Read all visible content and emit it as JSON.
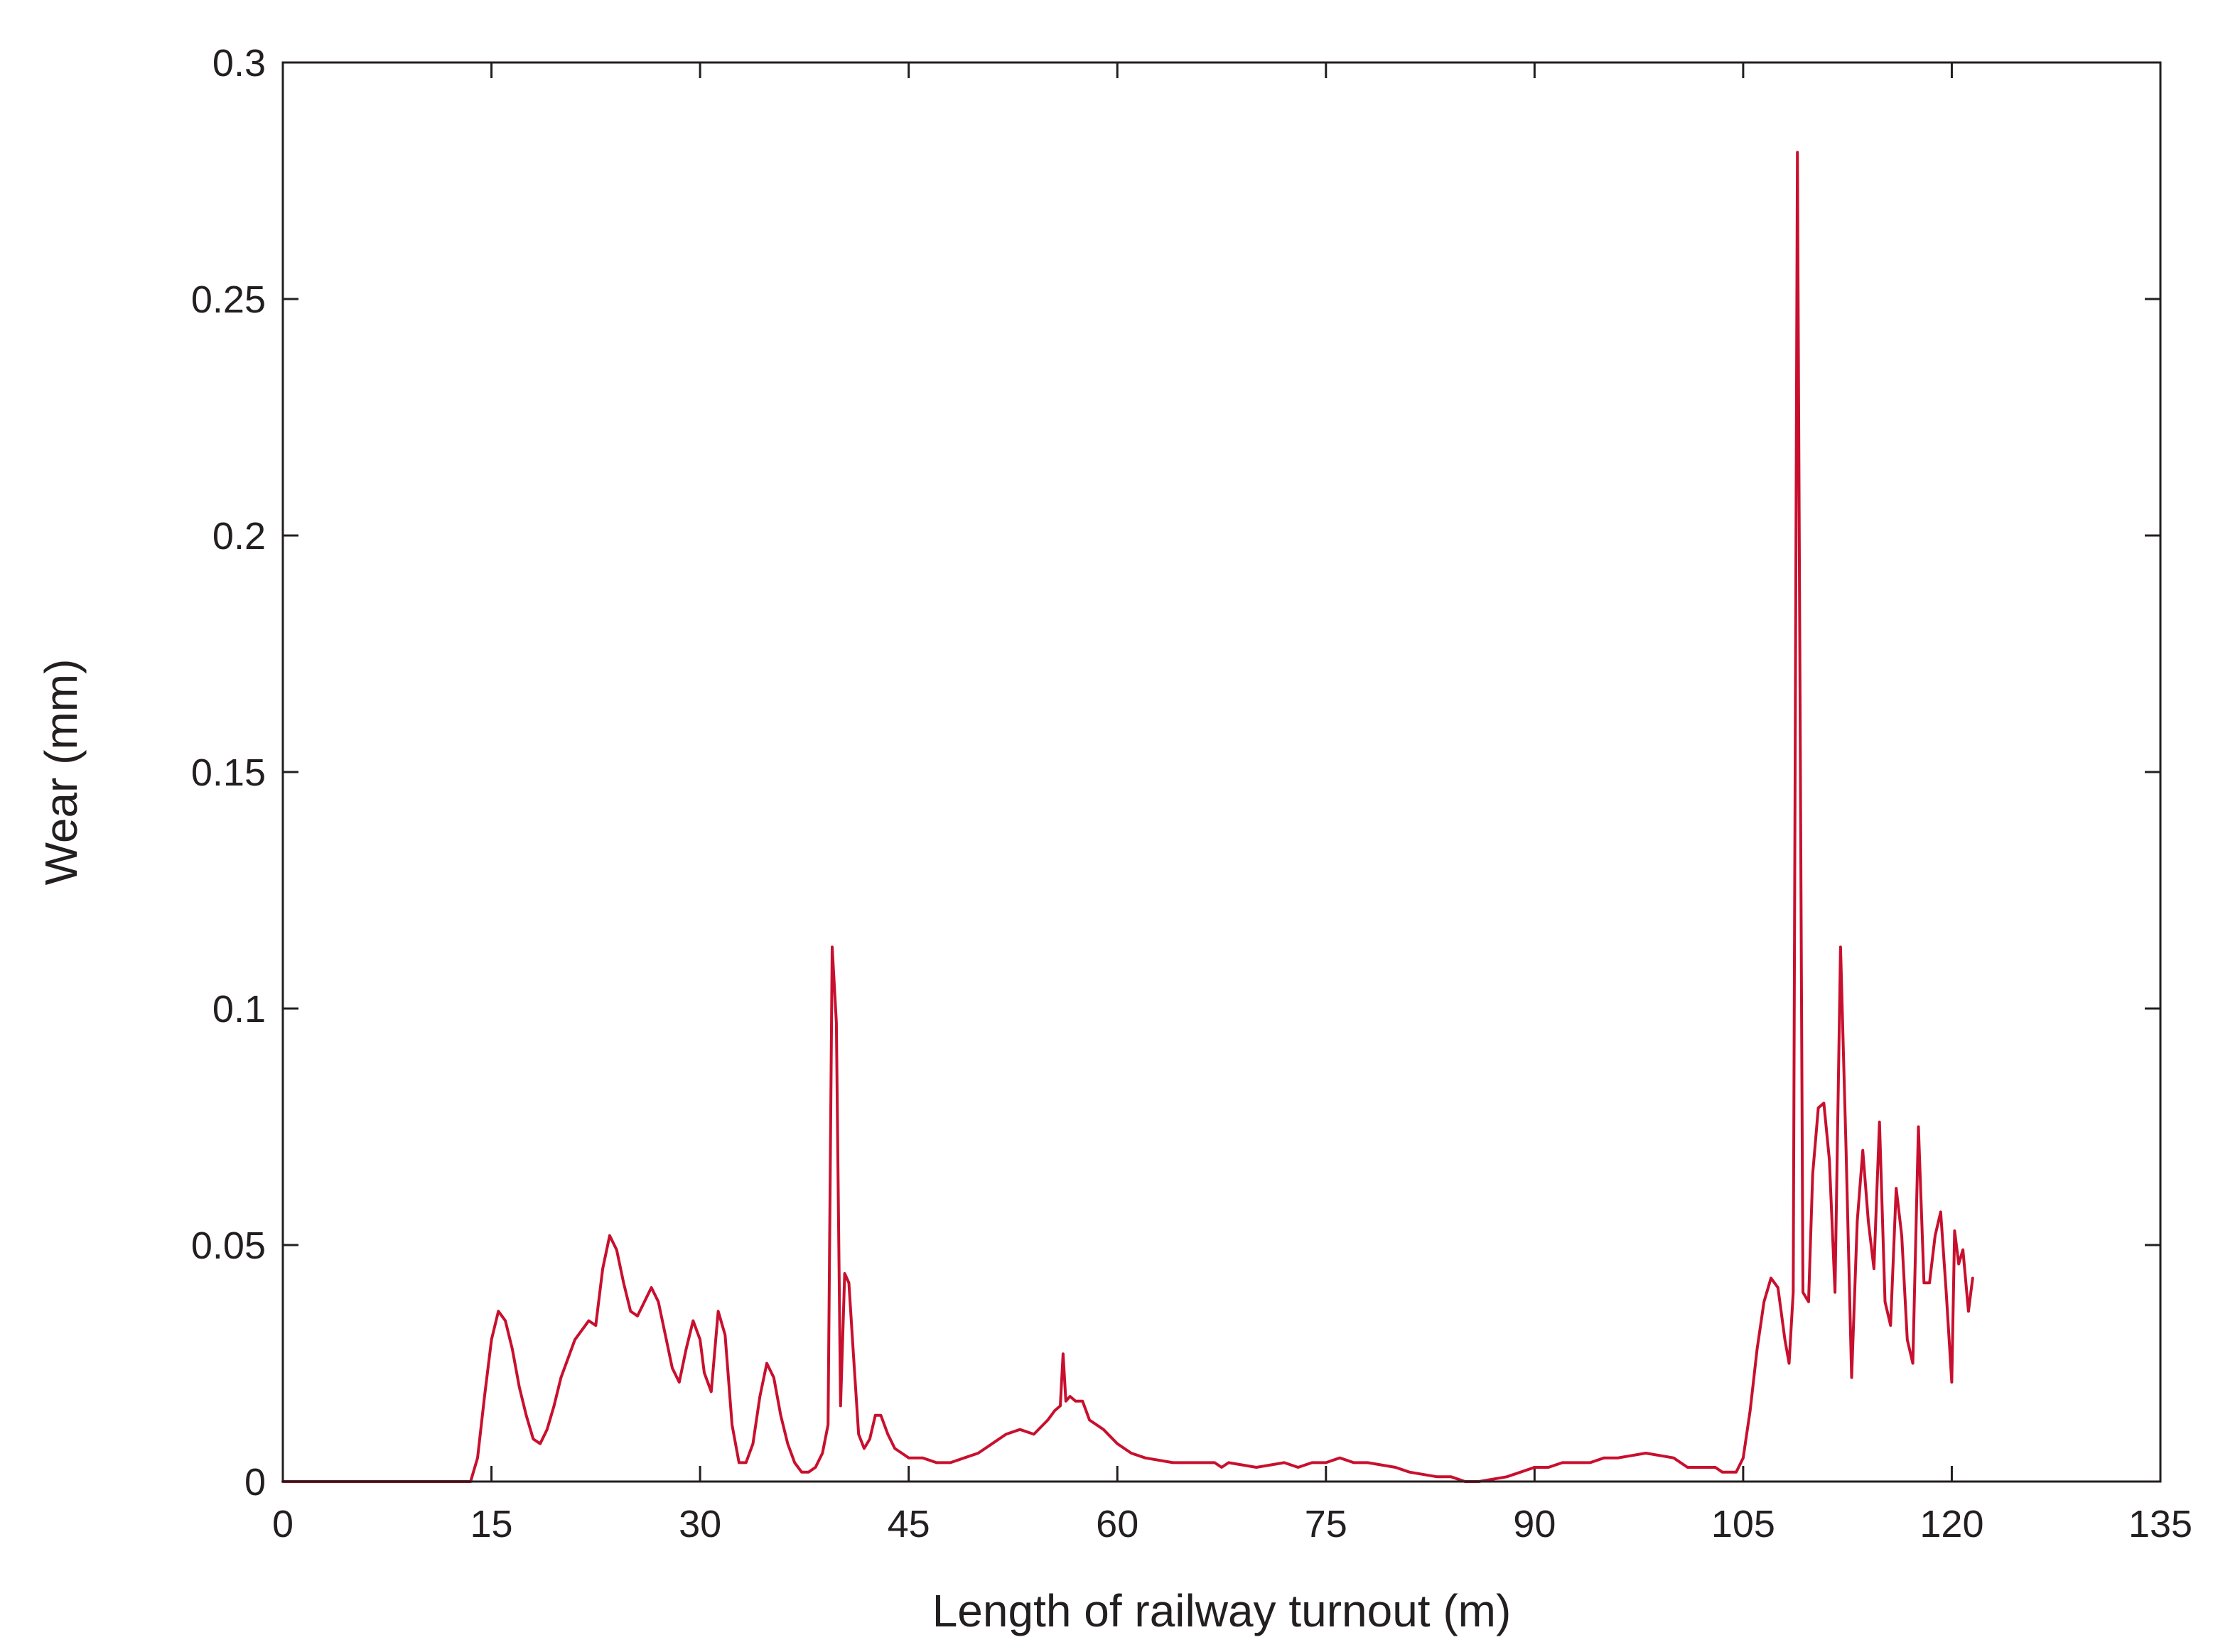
{
  "chart_data": {
    "type": "line",
    "title": "",
    "xlabel": "Length of railway turnout (m)",
    "ylabel": "Wear (mm)",
    "xlim": [
      0,
      135
    ],
    "ylim": [
      0,
      0.3
    ],
    "xticks": [
      0,
      15,
      30,
      45,
      60,
      75,
      90,
      105,
      120,
      135
    ],
    "xtick_labels": [
      "0",
      "15",
      "30",
      "45",
      "60",
      "75",
      "90",
      "105",
      "120",
      "135"
    ],
    "yticks": [
      0,
      0.05,
      0.1,
      0.15,
      0.2,
      0.25,
      0.3
    ],
    "ytick_labels": [
      "0",
      "0.05",
      "0.1",
      "0.15",
      "0.2",
      "0.25",
      "0.3"
    ],
    "grid": false,
    "legend": "none",
    "series": [
      {
        "color": "#c8102e",
        "x": [
          0,
          5,
          10,
          13.5,
          14,
          14.5,
          15,
          15.5,
          16,
          16.5,
          17,
          17.5,
          18,
          18.5,
          19,
          19.5,
          20,
          21,
          22,
          22.5,
          23,
          23.5,
          24,
          24.5,
          25,
          25.5,
          26,
          26.5,
          27,
          27.5,
          28,
          28.5,
          29,
          29.5,
          30,
          30.3,
          30.8,
          31.3,
          31.8,
          32.3,
          32.8,
          33.3,
          33.8,
          34.3,
          34.8,
          35.3,
          35.8,
          36.3,
          36.8,
          37.3,
          37.8,
          38.3,
          38.8,
          39.2,
          39.5,
          39.8,
          40.1,
          40.4,
          40.7,
          41.0,
          41.4,
          41.8,
          42.2,
          42.6,
          43.0,
          43.5,
          44.0,
          44.5,
          45,
          46,
          47,
          48,
          49,
          50,
          51,
          52,
          53,
          54,
          55,
          55.5,
          55.9,
          56.1,
          56.3,
          56.6,
          57.0,
          57.5,
          58,
          59,
          60,
          61,
          62,
          64,
          66,
          67,
          67.5,
          68,
          70,
          72,
          73,
          74,
          75,
          76,
          77,
          78,
          80,
          81,
          83,
          84,
          85,
          86,
          88,
          89,
          90,
          91,
          92,
          93,
          94,
          95,
          96,
          98,
          100,
          101,
          102,
          103,
          103.5,
          104,
          104.5,
          105,
          105.5,
          106,
          106.5,
          107,
          107.5,
          108,
          108.3,
          108.6,
          108.9,
          109.3,
          109.7,
          110.0,
          110.4,
          110.8,
          111.2,
          111.6,
          112.0,
          112.4,
          112.8,
          113.2,
          113.6,
          114.0,
          114.4,
          114.8,
          115.2,
          115.6,
          116.0,
          116.4,
          116.8,
          117.2,
          117.6,
          118.0,
          118.4,
          118.8,
          119.2,
          119.6,
          120.0,
          120.2,
          120.5,
          120.8,
          121.2,
          121.5
        ],
        "y": [
          0.0,
          0.0,
          0.0,
          0.0,
          0.005,
          0.018,
          0.03,
          0.036,
          0.034,
          0.028,
          0.02,
          0.014,
          0.009,
          0.008,
          0.011,
          0.016,
          0.022,
          0.03,
          0.034,
          0.033,
          0.045,
          0.052,
          0.049,
          0.042,
          0.036,
          0.035,
          0.038,
          0.041,
          0.038,
          0.031,
          0.024,
          0.021,
          0.028,
          0.034,
          0.03,
          0.023,
          0.019,
          0.036,
          0.031,
          0.012,
          0.004,
          0.004,
          0.008,
          0.018,
          0.025,
          0.022,
          0.014,
          0.008,
          0.004,
          0.002,
          0.002,
          0.003,
          0.006,
          0.012,
          0.113,
          0.097,
          0.016,
          0.044,
          0.042,
          0.028,
          0.01,
          0.007,
          0.009,
          0.014,
          0.014,
          0.01,
          0.007,
          0.006,
          0.005,
          0.005,
          0.004,
          0.004,
          0.005,
          0.006,
          0.008,
          0.01,
          0.011,
          0.01,
          0.013,
          0.015,
          0.016,
          0.027,
          0.017,
          0.018,
          0.017,
          0.017,
          0.013,
          0.011,
          0.008,
          0.006,
          0.005,
          0.004,
          0.004,
          0.004,
          0.003,
          0.004,
          0.003,
          0.004,
          0.003,
          0.004,
          0.004,
          0.005,
          0.004,
          0.004,
          0.003,
          0.002,
          0.001,
          0.001,
          0.0,
          0.0,
          0.001,
          0.002,
          0.003,
          0.003,
          0.004,
          0.004,
          0.004,
          0.005,
          0.005,
          0.006,
          0.005,
          0.003,
          0.003,
          0.003,
          0.002,
          0.002,
          0.002,
          0.005,
          0.015,
          0.028,
          0.038,
          0.043,
          0.041,
          0.03,
          0.025,
          0.04,
          0.281,
          0.04,
          0.038,
          0.065,
          0.079,
          0.08,
          0.068,
          0.04,
          0.113,
          0.07,
          0.022,
          0.055,
          0.07,
          0.055,
          0.045,
          0.076,
          0.038,
          0.033,
          0.062,
          0.052,
          0.03,
          0.025,
          0.075,
          0.042,
          0.042,
          0.052,
          0.057,
          0.04,
          0.021,
          0.053,
          0.046,
          0.049,
          0.036,
          0.043
        ]
      }
    ]
  }
}
